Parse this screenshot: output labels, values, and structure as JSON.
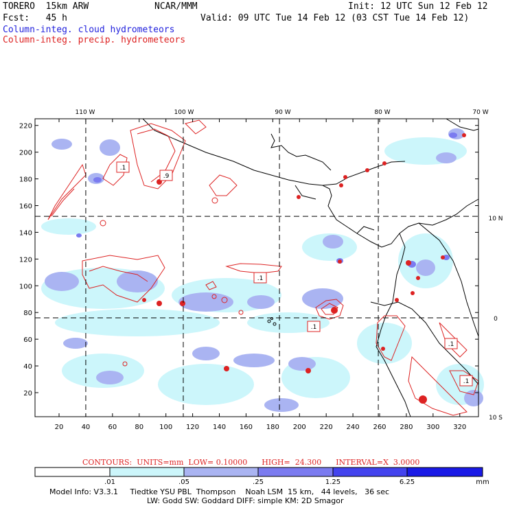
{
  "header": {
    "model": "TORERO  15km ARW",
    "center": "NCAR/MMM",
    "init": "Init: 12 UTC Sun 12 Feb 12",
    "fcst": "Fcst:   45 h",
    "valid": "Valid: 09 UTC Tue 14 Feb 12 (03 CST Tue 14 Feb 12)",
    "legend_cloud": "Column-integ. cloud hydrometeors",
    "legend_precip": "Column-integ. precip. hydrometeors"
  },
  "map": {
    "top_lon_labels": [
      "110 W",
      "100 W",
      "90 W",
      "80 W",
      "70 W"
    ],
    "right_lat_labels": [
      "10 N",
      "0",
      "10 S"
    ],
    "y_ticks": [
      "220",
      "200",
      "180",
      "160",
      "140",
      "120",
      "100",
      "80",
      "60",
      "40",
      "20"
    ],
    "x_ticks": [
      "20",
      "40",
      "60",
      "80",
      "100",
      "120",
      "140",
      "160",
      "180",
      "200",
      "220",
      "240",
      "260",
      "280",
      "300",
      "320"
    ],
    "contour_labels": [
      ".1",
      ".9",
      ".1",
      ".1",
      ".1",
      ".1"
    ],
    "grid_x_values": [
      40,
      113,
      185,
      259
    ],
    "grid_y_values": [
      152,
      76
    ]
  },
  "footer": {
    "contours_info": "CONTOURS:  UNITS=mm  LOW= 0.10000      HIGH=  24.300      INTERVAL=X  3.0000",
    "colorbar_labels": [
      ".01",
      ".05",
      ".25",
      "1.25",
      "6.25"
    ],
    "colorbar_unit": "mm",
    "colorbar_colors": [
      "#ffffff",
      "#ccf6fb",
      "#aab4f2",
      "#7b7bf0",
      "#4343ee",
      "#1a1ae6"
    ],
    "model_info_line1": "Model Info: V3.3.1     Tiedtke YSU PBL  Thompson    Noah LSM  15 km,   44 levels,   36 sec",
    "model_info_line2": "LW: Godd SW: Goddard DIFF: simple KM: 2D Smagor"
  },
  "colors": {
    "cloud_light": "#ccf6fb",
    "cloud_mid": "#aab4f2",
    "cloud_dark": "#7b7bf0",
    "precip": "#dd2222"
  }
}
